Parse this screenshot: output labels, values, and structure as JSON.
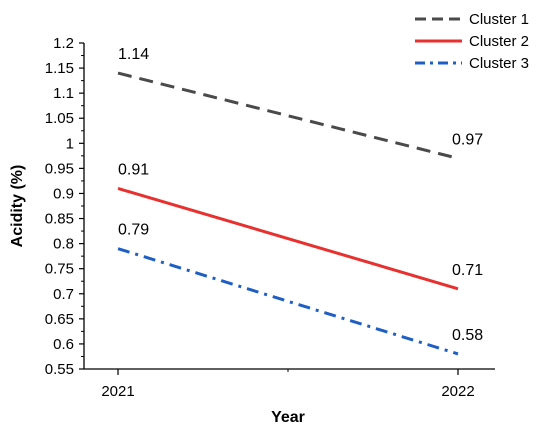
{
  "chart_data": {
    "type": "line",
    "xlabel": "Year",
    "ylabel": "Acidity (%)",
    "categories": [
      "2021",
      "2022"
    ],
    "ylim": [
      0.55,
      1.2
    ],
    "yticks": [
      "0.55",
      "0.6",
      "0.65",
      "0.7",
      "0.75",
      "0.8",
      "0.85",
      "0.9",
      "0.95",
      "1",
      "1.05",
      "1.1",
      "1.15",
      "1.2"
    ],
    "grid": false,
    "legend_position": "top-right",
    "series": [
      {
        "name": "Cluster 1",
        "values": [
          1.14,
          0.97
        ],
        "labels": [
          "1.14",
          "0.97"
        ],
        "color": "#4a4a4a",
        "dash": "dashed"
      },
      {
        "name": "Cluster 2",
        "values": [
          0.91,
          0.71
        ],
        "labels": [
          "0.91",
          "0.71"
        ],
        "color": "#e8312f",
        "dash": "solid"
      },
      {
        "name": "Cluster 3",
        "values": [
          0.79,
          0.58
        ],
        "labels": [
          "0.79",
          "0.58"
        ],
        "color": "#1f5fc4",
        "dash": "dash-dot"
      }
    ]
  }
}
